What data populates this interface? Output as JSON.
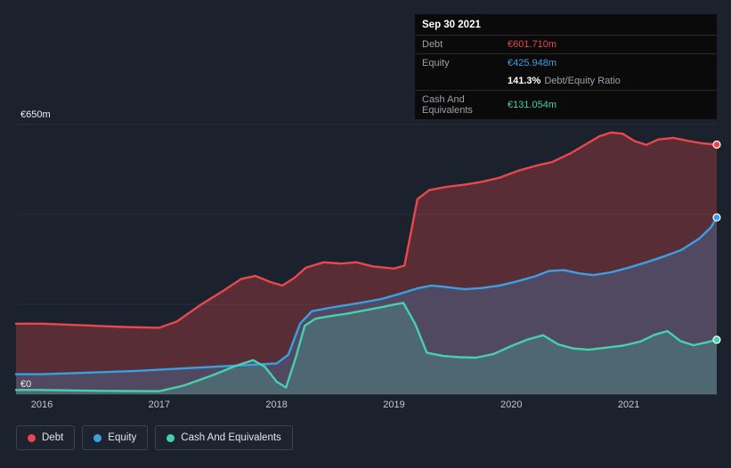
{
  "tooltip": {
    "date": "Sep 30 2021",
    "debt_label": "Debt",
    "debt_value": "€601.710m",
    "equity_label": "Equity",
    "equity_value": "€425.948m",
    "ratio_value": "141.3%",
    "ratio_label": "Debt/Equity Ratio",
    "cash_label": "Cash And Equivalents",
    "cash_value": "€131.054m"
  },
  "legend": {
    "items": [
      {
        "label": "Debt",
        "color": "#e8484d"
      },
      {
        "label": "Equity",
        "color": "#3b9fe3"
      },
      {
        "label": "Cash And Equivalents",
        "color": "#45d0b0"
      }
    ]
  },
  "colors": {
    "background": "#1b222d",
    "grid": "#272f3b",
    "axis": "#3a4350",
    "debt": "#e8484d",
    "equity": "#3b9fe3",
    "cash": "#45d0b0"
  },
  "chart_data": {
    "type": "area",
    "xlim": [
      2015.78,
      2021.75
    ],
    "ylim": [
      0,
      650
    ],
    "gridlines": [
      0,
      216.7,
      433.3,
      650
    ],
    "y_ticks": [
      {
        "value": 650,
        "label": "€650m"
      },
      {
        "value": 0,
        "label": "€0"
      }
    ],
    "x_ticks": [
      {
        "value": 2016,
        "label": "2016"
      },
      {
        "value": 2017,
        "label": "2017"
      },
      {
        "value": 2018,
        "label": "2018"
      },
      {
        "value": 2019,
        "label": "2019"
      },
      {
        "value": 2020,
        "label": "2020"
      },
      {
        "value": 2021,
        "label": "2021"
      }
    ],
    "legend_position": "bottom-left",
    "series": [
      {
        "name": "Debt",
        "color": "#e8484d",
        "fill_opacity": 0.3,
        "points": [
          [
            2015.78,
            170
          ],
          [
            2016.0,
            170
          ],
          [
            2016.35,
            166
          ],
          [
            2016.7,
            162
          ],
          [
            2017.0,
            160
          ],
          [
            2017.15,
            175
          ],
          [
            2017.35,
            215
          ],
          [
            2017.55,
            250
          ],
          [
            2017.7,
            278
          ],
          [
            2017.82,
            285
          ],
          [
            2017.95,
            270
          ],
          [
            2018.05,
            262
          ],
          [
            2018.15,
            280
          ],
          [
            2018.25,
            305
          ],
          [
            2018.4,
            318
          ],
          [
            2018.55,
            315
          ],
          [
            2018.68,
            318
          ],
          [
            2018.82,
            308
          ],
          [
            2019.0,
            303
          ],
          [
            2019.09,
            310
          ],
          [
            2019.2,
            470
          ],
          [
            2019.3,
            492
          ],
          [
            2019.45,
            500
          ],
          [
            2019.6,
            505
          ],
          [
            2019.75,
            512
          ],
          [
            2019.9,
            522
          ],
          [
            2020.05,
            538
          ],
          [
            2020.2,
            550
          ],
          [
            2020.35,
            560
          ],
          [
            2020.5,
            580
          ],
          [
            2020.65,
            605
          ],
          [
            2020.75,
            622
          ],
          [
            2020.85,
            631
          ],
          [
            2020.95,
            628
          ],
          [
            2021.05,
            610
          ],
          [
            2021.15,
            601
          ],
          [
            2021.25,
            614
          ],
          [
            2021.38,
            618
          ],
          [
            2021.5,
            611
          ],
          [
            2021.62,
            605
          ],
          [
            2021.75,
            601.71
          ]
        ]
      },
      {
        "name": "Equity",
        "color": "#3b9fe3",
        "fill_opacity": 0.25,
        "points": [
          [
            2015.78,
            48
          ],
          [
            2016.0,
            48
          ],
          [
            2016.4,
            52
          ],
          [
            2016.8,
            56
          ],
          [
            2017.2,
            62
          ],
          [
            2017.6,
            68
          ],
          [
            2018.0,
            74
          ],
          [
            2018.1,
            95
          ],
          [
            2018.2,
            170
          ],
          [
            2018.3,
            200
          ],
          [
            2018.45,
            208
          ],
          [
            2018.6,
            215
          ],
          [
            2018.75,
            222
          ],
          [
            2018.9,
            230
          ],
          [
            2019.05,
            242
          ],
          [
            2019.2,
            255
          ],
          [
            2019.32,
            262
          ],
          [
            2019.45,
            258
          ],
          [
            2019.6,
            253
          ],
          [
            2019.75,
            256
          ],
          [
            2019.9,
            262
          ],
          [
            2020.05,
            272
          ],
          [
            2020.2,
            284
          ],
          [
            2020.32,
            297
          ],
          [
            2020.45,
            299
          ],
          [
            2020.58,
            291
          ],
          [
            2020.7,
            287
          ],
          [
            2020.85,
            294
          ],
          [
            2021.0,
            305
          ],
          [
            2021.15,
            318
          ],
          [
            2021.3,
            332
          ],
          [
            2021.45,
            348
          ],
          [
            2021.6,
            375
          ],
          [
            2021.7,
            402
          ],
          [
            2021.75,
            425.948
          ]
        ]
      },
      {
        "name": "Cash And Equivalents",
        "color": "#45d0b0",
        "fill_opacity": 0.22,
        "points": [
          [
            2015.78,
            10
          ],
          [
            2016.0,
            10
          ],
          [
            2016.5,
            8
          ],
          [
            2017.0,
            7
          ],
          [
            2017.2,
            20
          ],
          [
            2017.45,
            45
          ],
          [
            2017.65,
            68
          ],
          [
            2017.8,
            82
          ],
          [
            2017.9,
            66
          ],
          [
            2018.0,
            30
          ],
          [
            2018.08,
            16
          ],
          [
            2018.16,
            85
          ],
          [
            2018.24,
            165
          ],
          [
            2018.33,
            182
          ],
          [
            2018.45,
            188
          ],
          [
            2018.6,
            194
          ],
          [
            2018.75,
            202
          ],
          [
            2018.9,
            210
          ],
          [
            2019.0,
            216
          ],
          [
            2019.08,
            220
          ],
          [
            2019.18,
            170
          ],
          [
            2019.28,
            100
          ],
          [
            2019.42,
            92
          ],
          [
            2019.56,
            89
          ],
          [
            2019.7,
            88
          ],
          [
            2019.85,
            97
          ],
          [
            2020.0,
            116
          ],
          [
            2020.14,
            132
          ],
          [
            2020.27,
            142
          ],
          [
            2020.4,
            120
          ],
          [
            2020.53,
            110
          ],
          [
            2020.66,
            107
          ],
          [
            2020.8,
            112
          ],
          [
            2020.95,
            117
          ],
          [
            2021.1,
            127
          ],
          [
            2021.22,
            143
          ],
          [
            2021.33,
            152
          ],
          [
            2021.44,
            128
          ],
          [
            2021.55,
            118
          ],
          [
            2021.65,
            124
          ],
          [
            2021.75,
            131.054
          ]
        ]
      }
    ]
  }
}
